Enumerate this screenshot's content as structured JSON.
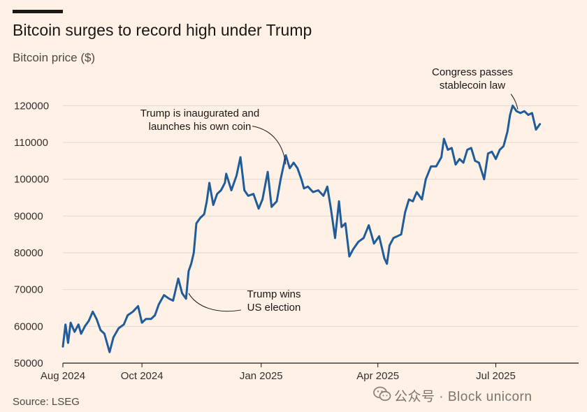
{
  "title": "Bitcoin surges to record high under Trump",
  "subtitle": "Bitcoin price ($)",
  "source": "Source: LSEG",
  "watermark": "公众号 · Block unicorn",
  "colors": {
    "background": "#FFF1E5",
    "line": "#1F5C99",
    "grid": "#E2D9D0",
    "text": "#33302E"
  },
  "chart_data": {
    "type": "line",
    "title": "Bitcoin surges to record high under Trump",
    "ylabel": "Bitcoin price ($)",
    "xlabel": "",
    "ylim": [
      50000,
      125000
    ],
    "yticks": [
      50000,
      60000,
      70000,
      80000,
      90000,
      100000,
      110000,
      120000
    ],
    "xlim": [
      "2024-08-01",
      "2025-08-01"
    ],
    "xticks": [
      {
        "date": "2024-08-01",
        "label": "Aug 2024"
      },
      {
        "date": "2024-10-01",
        "label": "Oct 2024"
      },
      {
        "date": "2025-01-01",
        "label": "Jan 2025"
      },
      {
        "date": "2025-04-01",
        "label": "Apr 2025"
      },
      {
        "date": "2025-07-01",
        "label": "Jul 2025"
      }
    ],
    "grid": true,
    "series": [
      {
        "values": [
          [
            "2024-08-01",
            54500
          ],
          [
            "2024-08-03",
            60500
          ],
          [
            "2024-08-05",
            55500
          ],
          [
            "2024-08-07",
            61000
          ],
          [
            "2024-08-10",
            58500
          ],
          [
            "2024-08-13",
            60500
          ],
          [
            "2024-08-15",
            58000
          ],
          [
            "2024-08-18",
            60000
          ],
          [
            "2024-08-21",
            61500
          ],
          [
            "2024-08-24",
            64000
          ],
          [
            "2024-08-27",
            62000
          ],
          [
            "2024-08-30",
            59000
          ],
          [
            "2024-09-02",
            58000
          ],
          [
            "2024-09-06",
            53000
          ],
          [
            "2024-09-09",
            57000
          ],
          [
            "2024-09-13",
            59500
          ],
          [
            "2024-09-17",
            60500
          ],
          [
            "2024-09-20",
            63000
          ],
          [
            "2024-09-24",
            64000
          ],
          [
            "2024-09-28",
            65500
          ],
          [
            "2024-10-01",
            61000
          ],
          [
            "2024-10-04",
            62000
          ],
          [
            "2024-10-08",
            62000
          ],
          [
            "2024-10-11",
            63000
          ],
          [
            "2024-10-14",
            66000
          ],
          [
            "2024-10-18",
            68500
          ],
          [
            "2024-10-22",
            67500
          ],
          [
            "2024-10-25",
            67000
          ],
          [
            "2024-10-29",
            73000
          ],
          [
            "2024-11-01",
            69000
          ],
          [
            "2024-11-04",
            67500
          ],
          [
            "2024-11-06",
            75000
          ],
          [
            "2024-11-08",
            77000
          ],
          [
            "2024-11-10",
            80000
          ],
          [
            "2024-11-12",
            88000
          ],
          [
            "2024-11-15",
            89500
          ],
          [
            "2024-11-18",
            90500
          ],
          [
            "2024-11-20",
            94000
          ],
          [
            "2024-11-22",
            99000
          ],
          [
            "2024-11-25",
            93000
          ],
          [
            "2024-11-28",
            96000
          ],
          [
            "2024-12-01",
            97000
          ],
          [
            "2024-12-04",
            99000
          ],
          [
            "2024-12-05",
            101500
          ],
          [
            "2024-12-09",
            97000
          ],
          [
            "2024-12-13",
            101000
          ],
          [
            "2024-12-16",
            106000
          ],
          [
            "2024-12-19",
            97000
          ],
          [
            "2024-12-22",
            95500
          ],
          [
            "2024-12-26",
            96000
          ],
          [
            "2024-12-30",
            92000
          ],
          [
            "2025-01-02",
            94500
          ],
          [
            "2025-01-06",
            102000
          ],
          [
            "2025-01-09",
            92500
          ],
          [
            "2025-01-13",
            94000
          ],
          [
            "2025-01-16",
            100000
          ],
          [
            "2025-01-20",
            106500
          ],
          [
            "2025-01-23",
            103000
          ],
          [
            "2025-01-26",
            104500
          ],
          [
            "2025-01-29",
            103000
          ],
          [
            "2025-02-01",
            100000
          ],
          [
            "2025-02-03",
            97500
          ],
          [
            "2025-02-06",
            98000
          ],
          [
            "2025-02-10",
            96500
          ],
          [
            "2025-02-14",
            97000
          ],
          [
            "2025-02-18",
            95500
          ],
          [
            "2025-02-21",
            98000
          ],
          [
            "2025-02-24",
            91500
          ],
          [
            "2025-02-27",
            84000
          ],
          [
            "2025-03-02",
            94000
          ],
          [
            "2025-03-04",
            87000
          ],
          [
            "2025-03-07",
            88000
          ],
          [
            "2025-03-10",
            79000
          ],
          [
            "2025-03-13",
            81000
          ],
          [
            "2025-03-17",
            83000
          ],
          [
            "2025-03-21",
            84000
          ],
          [
            "2025-03-25",
            87500
          ],
          [
            "2025-03-29",
            82500
          ],
          [
            "2025-04-02",
            84500
          ],
          [
            "2025-04-06",
            78500
          ],
          [
            "2025-04-08",
            77000
          ],
          [
            "2025-04-10",
            82000
          ],
          [
            "2025-04-13",
            84000
          ],
          [
            "2025-04-16",
            84500
          ],
          [
            "2025-04-19",
            85000
          ],
          [
            "2025-04-22",
            91000
          ],
          [
            "2025-04-25",
            94500
          ],
          [
            "2025-04-28",
            94000
          ],
          [
            "2025-05-01",
            96500
          ],
          [
            "2025-05-05",
            94500
          ],
          [
            "2025-05-08",
            100000
          ],
          [
            "2025-05-12",
            103500
          ],
          [
            "2025-05-16",
            103500
          ],
          [
            "2025-05-20",
            106000
          ],
          [
            "2025-05-22",
            111000
          ],
          [
            "2025-05-25",
            108000
          ],
          [
            "2025-05-28",
            108500
          ],
          [
            "2025-05-31",
            104000
          ],
          [
            "2025-06-03",
            105500
          ],
          [
            "2025-06-06",
            104500
          ],
          [
            "2025-06-09",
            108000
          ],
          [
            "2025-06-12",
            108500
          ],
          [
            "2025-06-15",
            105000
          ],
          [
            "2025-06-18",
            104500
          ],
          [
            "2025-06-22",
            100000
          ],
          [
            "2025-06-25",
            107000
          ],
          [
            "2025-06-28",
            107500
          ],
          [
            "2025-07-01",
            105500
          ],
          [
            "2025-07-04",
            108000
          ],
          [
            "2025-07-07",
            109000
          ],
          [
            "2025-07-10",
            113000
          ],
          [
            "2025-07-12",
            117500
          ],
          [
            "2025-07-14",
            120000
          ],
          [
            "2025-07-17",
            118500
          ],
          [
            "2025-07-20",
            118000
          ],
          [
            "2025-07-23",
            118500
          ],
          [
            "2025-07-26",
            117500
          ],
          [
            "2025-07-29",
            118000
          ],
          [
            "2025-08-01",
            113500
          ],
          [
            "2025-08-04",
            115000
          ]
        ]
      }
    ],
    "annotations": [
      {
        "text": [
          "Trump wins",
          "US election"
        ],
        "date": "2024-11-06",
        "value": 69000
      },
      {
        "text": [
          "Trump is inaugurated and",
          "launches his own coin"
        ],
        "date": "2025-01-20",
        "value": 104000
      },
      {
        "text": [
          "Congress passes",
          "stablecoin law"
        ],
        "date": "2025-07-18",
        "value": 119000
      }
    ]
  }
}
